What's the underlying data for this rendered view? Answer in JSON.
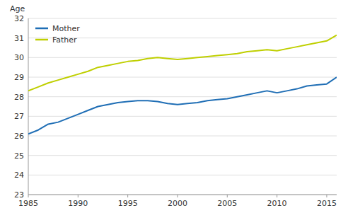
{
  "chart_data": {
    "type": "line",
    "y_label": "Age",
    "x": [
      1985,
      1986,
      1987,
      1988,
      1989,
      1990,
      1991,
      1992,
      1993,
      1994,
      1995,
      1996,
      1997,
      1998,
      1999,
      2000,
      2001,
      2002,
      2003,
      2004,
      2005,
      2006,
      2007,
      2008,
      2009,
      2010,
      2011,
      2012,
      2013,
      2014,
      2015,
      2016
    ],
    "series": [
      {
        "name": "Mother",
        "color": "#1f6eb5",
        "values": [
          26.1,
          26.3,
          26.6,
          26.7,
          26.9,
          27.1,
          27.3,
          27.5,
          27.6,
          27.7,
          27.75,
          27.8,
          27.8,
          27.75,
          27.65,
          27.6,
          27.65,
          27.7,
          27.8,
          27.85,
          27.9,
          28.0,
          28.1,
          28.2,
          28.3,
          28.2,
          28.3,
          28.4,
          28.55,
          28.6,
          28.65,
          29.0
        ]
      },
      {
        "name": "Father",
        "color": "#bfcf00",
        "values": [
          28.3,
          28.5,
          28.7,
          28.85,
          29.0,
          29.15,
          29.3,
          29.5,
          29.6,
          29.7,
          29.8,
          29.85,
          29.95,
          30.0,
          29.95,
          29.9,
          29.95,
          30.0,
          30.05,
          30.1,
          30.15,
          30.2,
          30.3,
          30.35,
          30.4,
          30.35,
          30.45,
          30.55,
          30.65,
          30.75,
          30.85,
          31.15
        ]
      }
    ],
    "xlim": [
      1985,
      2016
    ],
    "ylim": [
      23,
      32
    ],
    "xticks": [
      1985,
      1990,
      1995,
      2000,
      2005,
      2010,
      2015
    ],
    "yticks": [
      23,
      24,
      25,
      26,
      27,
      28,
      29,
      30,
      31,
      32
    ],
    "grid": true,
    "legend": "upper left"
  }
}
